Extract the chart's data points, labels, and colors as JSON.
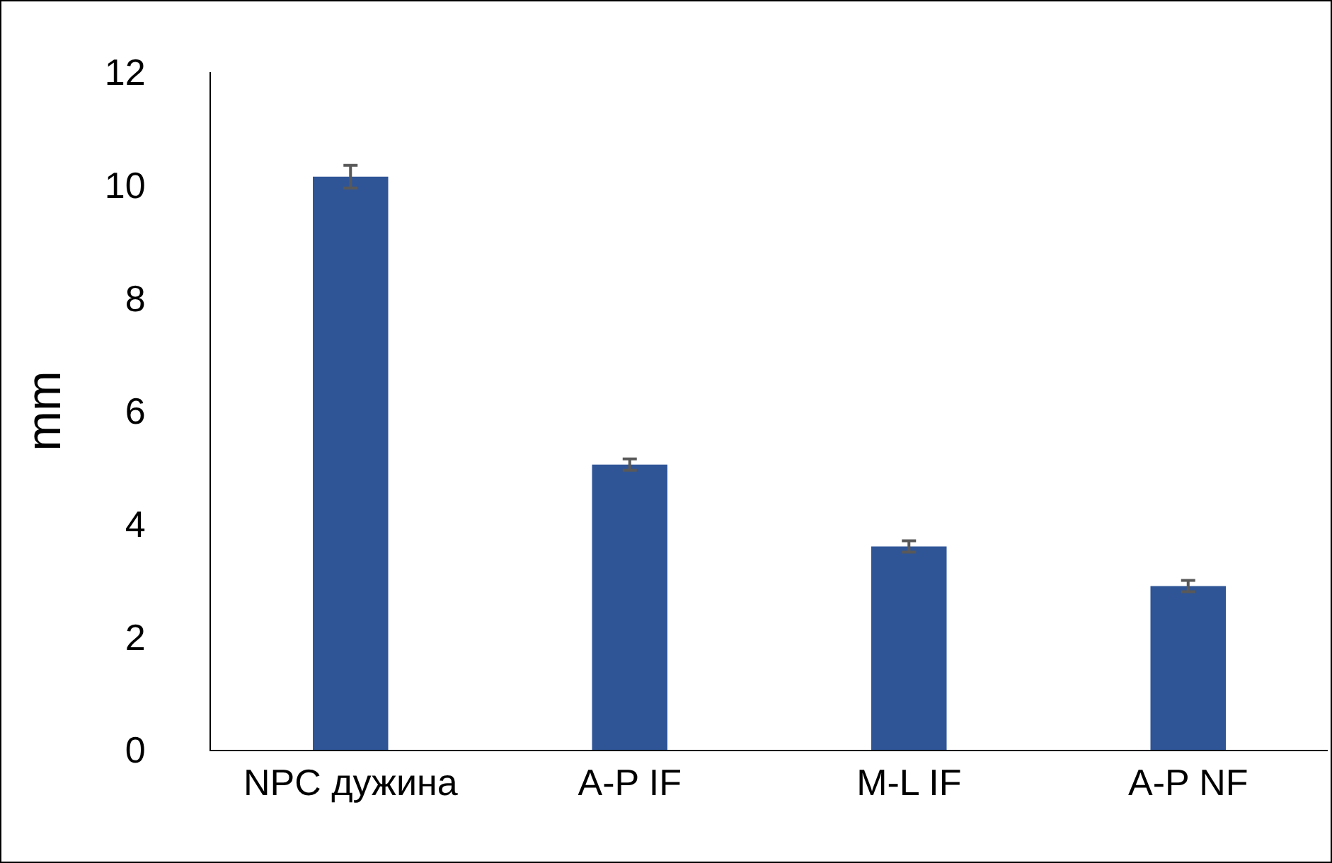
{
  "chart_data": {
    "type": "bar",
    "ylabel": "mm",
    "categories": [
      "NPC дужина",
      "A-P IF",
      "M-L IF",
      "A-P NF"
    ],
    "values": [
      10.15,
      5.05,
      3.6,
      2.9
    ],
    "errors": [
      0.2,
      0.1,
      0.1,
      0.1
    ],
    "color": "#2f5597",
    "ylim": [
      0,
      12
    ],
    "yticks": [
      0,
      2,
      4,
      6,
      8,
      10,
      12
    ],
    "grid": false
  }
}
